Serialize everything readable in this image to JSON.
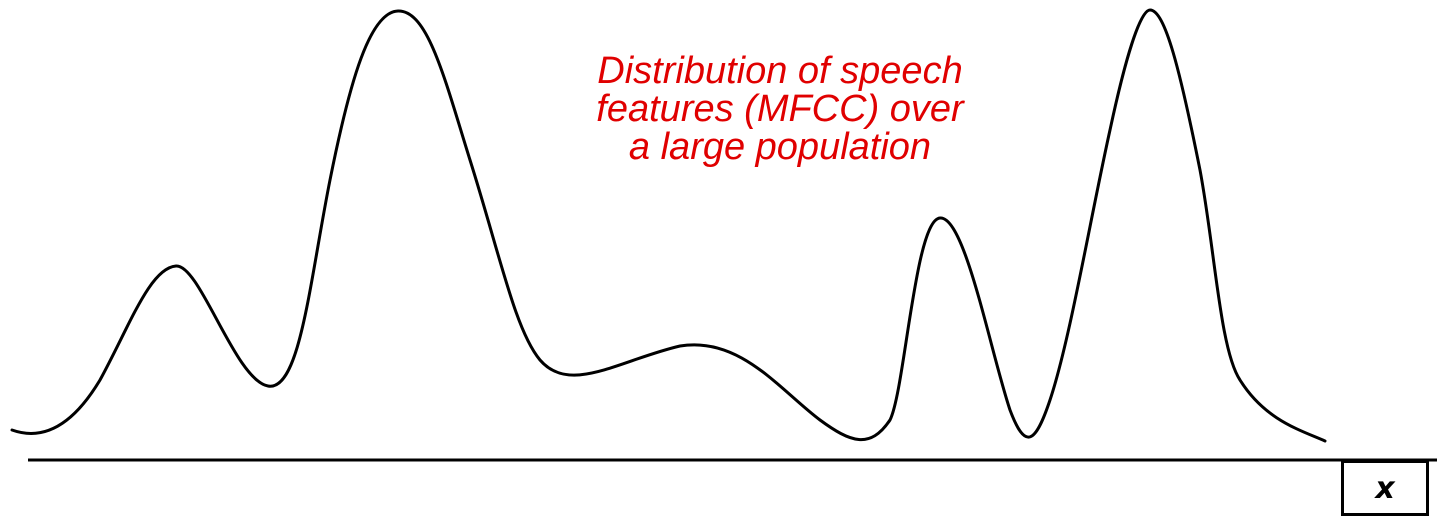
{
  "caption": {
    "line1": "Distribution of speech",
    "line2": "features (MFCC) over",
    "line3": "a large population"
  },
  "axis": {
    "variable_label": "x"
  },
  "colors": {
    "caption": "#e00000",
    "curve": "#000000",
    "axis": "#000000"
  }
}
